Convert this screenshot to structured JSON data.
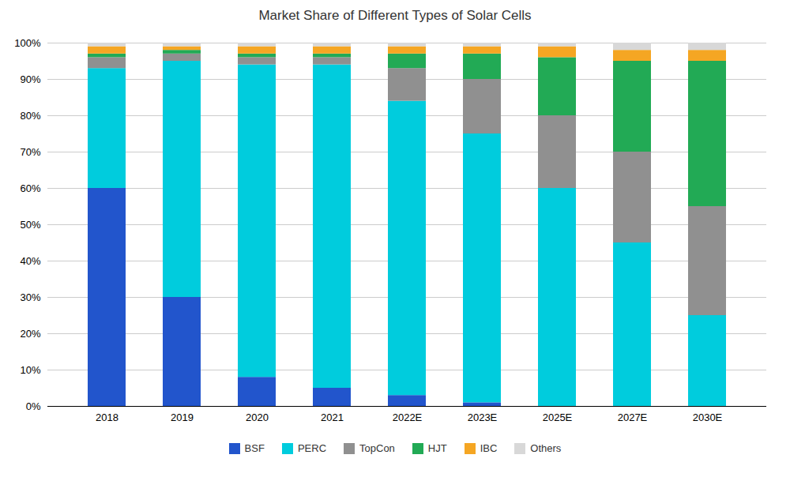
{
  "chart_data": {
    "type": "bar",
    "stacked": true,
    "title": "Market Share of Different Types of Solar Cells",
    "categories": [
      "2018",
      "2019",
      "2020",
      "2021",
      "2022E",
      "2023E",
      "2025E",
      "2027E",
      "2030E"
    ],
    "series": [
      {
        "name": "BSF",
        "color": "#2255cc",
        "values": [
          60,
          30,
          8,
          5,
          3,
          1,
          0,
          0,
          0
        ]
      },
      {
        "name": "PERC",
        "color": "#00ccdd",
        "values": [
          33,
          65,
          86,
          89,
          81,
          74,
          60,
          45,
          25
        ]
      },
      {
        "name": "TopCon",
        "color": "#909090",
        "values": [
          3,
          2,
          2,
          2,
          9,
          15,
          20,
          25,
          30
        ]
      },
      {
        "name": "HJT",
        "color": "#22aa55",
        "values": [
          1,
          1,
          1,
          1,
          4,
          7,
          16,
          25,
          40
        ]
      },
      {
        "name": "IBC",
        "color": "#f5a623",
        "values": [
          2,
          1,
          2,
          2,
          2,
          2,
          3,
          3,
          3
        ]
      },
      {
        "name": "Others",
        "color": "#d8d8d8",
        "values": [
          1,
          1,
          1,
          1,
          1,
          1,
          1,
          2,
          2
        ]
      }
    ],
    "ylim": [
      0,
      100
    ],
    "yticks": [
      {
        "value": 0,
        "label": "0%"
      },
      {
        "value": 10,
        "label": "10%"
      },
      {
        "value": 20,
        "label": "20%"
      },
      {
        "value": 30,
        "label": "30%"
      },
      {
        "value": 40,
        "label": "40%"
      },
      {
        "value": 50,
        "label": "50%"
      },
      {
        "value": 60,
        "label": "60%"
      },
      {
        "value": 70,
        "label": "70%"
      },
      {
        "value": 80,
        "label": "80%"
      },
      {
        "value": 90,
        "label": "90%"
      },
      {
        "value": 100,
        "label": "100%"
      }
    ],
    "grid": true,
    "legend": "bottom"
  }
}
